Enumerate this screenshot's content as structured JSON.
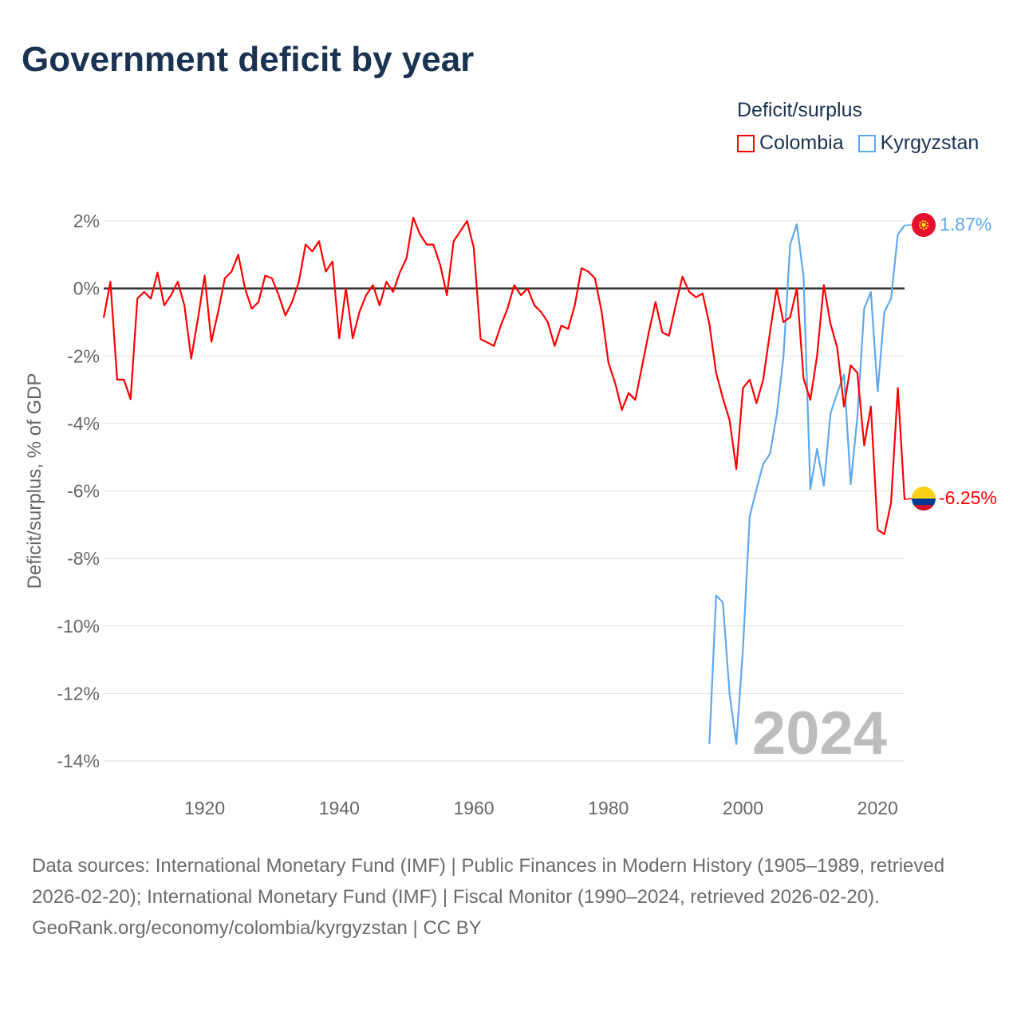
{
  "title": "Government deficit by year",
  "legend_title": "Deficit/surplus",
  "colors": {
    "Colombia": "#ff0000",
    "Kyrgyzstan": "#5ea8ee"
  },
  "chart_data": {
    "type": "line",
    "title": "Government deficit by year",
    "xlabel": "",
    "ylabel": "Deficit/surplus, % of GDP",
    "xlim": [
      1905,
      2024
    ],
    "ylim": [
      -14,
      2
    ],
    "x_ticks": [
      "1920",
      "1940",
      "1960",
      "1980",
      "2000",
      "2020"
    ],
    "y_ticks": [
      "2%",
      "0%",
      "-2%",
      "-4%",
      "-6%",
      "-8%",
      "-10%",
      "-12%",
      "-14%"
    ],
    "grid": true,
    "legend_position": "top-right",
    "year_watermark": "2024",
    "series": [
      {
        "name": "Colombia",
        "start_year": 1905,
        "end_label": "-6.25%",
        "values": [
          -0.87,
          0.2,
          -2.7,
          -2.7,
          -3.28,
          -0.3,
          -0.1,
          -0.3,
          0.47,
          -0.5,
          -0.2,
          0.2,
          -0.5,
          -2.08,
          -0.9,
          0.38,
          -1.58,
          -0.7,
          0.3,
          0.5,
          1.0,
          0.0,
          -0.6,
          -0.4,
          0.38,
          0.3,
          -0.2,
          -0.8,
          -0.4,
          0.2,
          1.3,
          1.1,
          1.4,
          0.5,
          0.8,
          -1.48,
          0.0,
          -1.48,
          -0.7,
          -0.2,
          0.1,
          -0.5,
          0.2,
          -0.1,
          0.47,
          0.9,
          2.1,
          1.6,
          1.3,
          1.3,
          0.7,
          -0.2,
          1.4,
          1.7,
          2.0,
          1.2,
          -1.5,
          -1.6,
          -1.7,
          -1.1,
          -0.6,
          0.1,
          -0.2,
          0.0,
          -0.5,
          -0.7,
          -1.0,
          -1.7,
          -1.1,
          -1.2,
          -0.5,
          0.6,
          0.5,
          0.3,
          -0.7,
          -2.2,
          -2.8,
          -3.6,
          -3.1,
          -3.3,
          -2.3,
          -1.3,
          -0.4,
          -1.3,
          -1.4,
          -0.5,
          0.35,
          -0.1,
          -0.26,
          -0.15,
          -1.05,
          -2.5,
          -3.25,
          -3.9,
          -5.35,
          -2.95,
          -2.7,
          -3.4,
          -2.7,
          -1.3,
          0.0,
          -1.0,
          -0.85,
          0.0,
          -2.67,
          -3.3,
          -2.0,
          0.1,
          -1.05,
          -1.75,
          -3.5,
          -2.28,
          -2.5,
          -4.65,
          -3.5,
          -7.15,
          -7.28,
          -6.35,
          -2.95,
          -6.25
        ]
      },
      {
        "name": "Kyrgyzstan",
        "start_year": 1995,
        "end_label": "1.87%",
        "values": [
          -13.5,
          -9.1,
          -9.3,
          -12.0,
          -13.5,
          -10.65,
          -6.75,
          -5.95,
          -5.2,
          -4.9,
          -3.75,
          -2.05,
          1.3,
          1.9,
          0.35,
          -5.95,
          -4.75,
          -5.85,
          -3.7,
          -3.1,
          -2.55,
          -5.8,
          -3.8,
          -0.6,
          -0.1,
          -3.05,
          -0.7,
          -0.3,
          1.6,
          1.87
        ]
      }
    ]
  },
  "footer": {
    "sources": "Data sources: International Monetary Fund (IMF) | Public Finances in Modern History (1905–1989, retrieved 2026-02-20); International Monetary Fund (IMF) | Fiscal Monitor (1990–2024, retrieved 2026-02-20).",
    "credit": "GeoRank.org/economy/colombia/kyrgyzstan | CC BY"
  }
}
